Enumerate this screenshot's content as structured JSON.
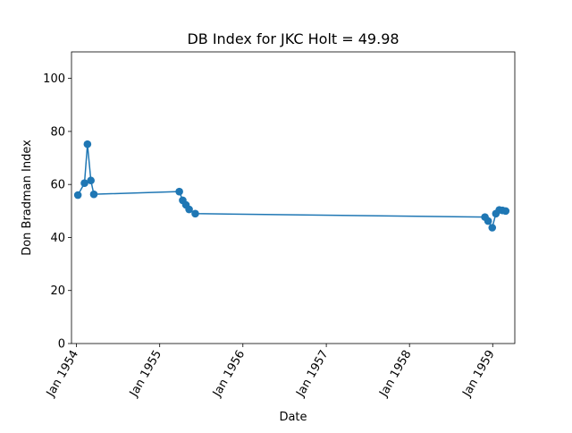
{
  "chart_data": {
    "type": "line",
    "title": "DB Index for JKC Holt = 49.98",
    "xlabel": "Date",
    "ylabel": "Don Bradman Index",
    "ylim": [
      0,
      110
    ],
    "xlim": [
      "1953-12-10",
      "1959-04-08"
    ],
    "x_ticks": [
      "1954-01-01",
      "1955-01-01",
      "1956-01-01",
      "1957-01-01",
      "1958-01-01",
      "1959-01-01"
    ],
    "x_tick_labels": [
      "Jan 1954",
      "Jan 1955",
      "Jan 1956",
      "Jan 1957",
      "Jan 1958",
      "Jan 1959"
    ],
    "y_ticks": [
      0,
      20,
      40,
      60,
      80,
      100
    ],
    "y_tick_labels": [
      "0",
      "20",
      "40",
      "60",
      "80",
      "100"
    ],
    "grid": false,
    "series": [
      {
        "color": "#1f77b4",
        "marker": "circle",
        "points": [
          {
            "x": "1954-01-07",
            "y": 56.0
          },
          {
            "x": "1954-02-05",
            "y": 60.5
          },
          {
            "x": "1954-02-18",
            "y": 75.2
          },
          {
            "x": "1954-03-05",
            "y": 61.5
          },
          {
            "x": "1954-03-18",
            "y": 56.3
          },
          {
            "x": "1955-03-28",
            "y": 57.3
          },
          {
            "x": "1955-04-12",
            "y": 54.0
          },
          {
            "x": "1955-04-26",
            "y": 52.3
          },
          {
            "x": "1955-05-10",
            "y": 50.6
          },
          {
            "x": "1955-06-06",
            "y": 49.0
          },
          {
            "x": "1958-11-28",
            "y": 47.7
          },
          {
            "x": "1958-12-12",
            "y": 46.2
          },
          {
            "x": "1958-12-30",
            "y": 43.7
          },
          {
            "x": "1959-01-15",
            "y": 49.0
          },
          {
            "x": "1959-01-30",
            "y": 50.4
          },
          {
            "x": "1959-02-13",
            "y": 50.2
          },
          {
            "x": "1959-02-27",
            "y": 49.98
          }
        ]
      }
    ]
  }
}
